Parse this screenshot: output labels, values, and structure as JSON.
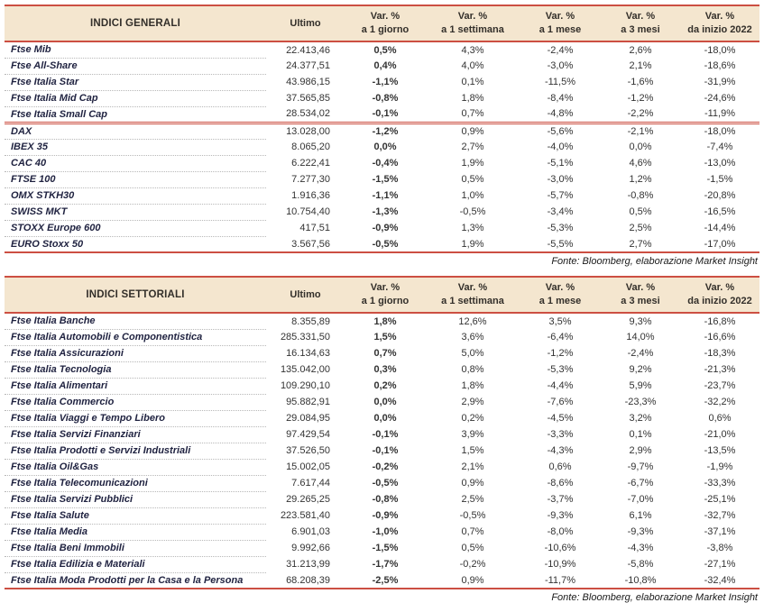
{
  "source_note": "Fonte: Bloomberg, elaborazione Market Insight",
  "header_cols": [
    {
      "line1": "Ultimo",
      "line2": ""
    },
    {
      "line1": "Var. %",
      "line2": "a 1 giorno"
    },
    {
      "line1": "Var. %",
      "line2": "a 1 settimana"
    },
    {
      "line1": "Var. %",
      "line2": "a 1 mese"
    },
    {
      "line1": "Var. %",
      "line2": "a 3 mesi"
    },
    {
      "line1": "Var. %",
      "line2": "da inizio 2022"
    }
  ],
  "tables": [
    {
      "title": "INDICI GENERALI",
      "groups": [
        {
          "rows": [
            [
              "Ftse Mib",
              "22.413,46",
              "0,5%",
              "4,3%",
              "-2,4%",
              "2,6%",
              "-18,0%"
            ],
            [
              "Ftse All-Share",
              "24.377,51",
              "0,4%",
              "4,0%",
              "-3,0%",
              "2,1%",
              "-18,6%"
            ],
            [
              "Ftse Italia Star",
              "43.986,15",
              "-1,1%",
              "0,1%",
              "-11,5%",
              "-1,6%",
              "-31,9%"
            ],
            [
              "Ftse Italia Mid Cap",
              "37.565,85",
              "-0,8%",
              "1,8%",
              "-8,4%",
              "-1,2%",
              "-24,6%"
            ],
            [
              "Ftse Italia Small Cap",
              "28.534,02",
              "-0,1%",
              "0,7%",
              "-4,8%",
              "-2,2%",
              "-11,9%"
            ]
          ]
        },
        {
          "rows": [
            [
              "DAX",
              "13.028,00",
              "-1,2%",
              "0,9%",
              "-5,6%",
              "-2,1%",
              "-18,0%"
            ],
            [
              "IBEX 35",
              "8.065,20",
              "0,0%",
              "2,7%",
              "-4,0%",
              "0,0%",
              "-7,4%"
            ],
            [
              "CAC 40",
              "6.222,41",
              "-0,4%",
              "1,9%",
              "-5,1%",
              "4,6%",
              "-13,0%"
            ],
            [
              "FTSE 100",
              "7.277,30",
              "-1,5%",
              "0,5%",
              "-3,0%",
              "1,2%",
              "-1,5%"
            ],
            [
              "OMX STKH30",
              "1.916,36",
              "-1,1%",
              "1,0%",
              "-5,7%",
              "-0,8%",
              "-20,8%"
            ],
            [
              "SWISS MKT",
              "10.754,40",
              "-1,3%",
              "-0,5%",
              "-3,4%",
              "0,5%",
              "-16,5%"
            ],
            [
              "STOXX Europe 600",
              "417,51",
              "-0,9%",
              "1,3%",
              "-5,3%",
              "2,5%",
              "-14,4%"
            ],
            [
              "EURO Stoxx 50",
              "3.567,56",
              "-0,5%",
              "1,9%",
              "-5,5%",
              "2,7%",
              "-17,0%"
            ]
          ]
        }
      ]
    },
    {
      "title": "INDICI SETTORIALI",
      "groups": [
        {
          "rows": [
            [
              "Ftse Italia Banche",
              "8.355,89",
              "1,8%",
              "12,6%",
              "3,5%",
              "9,3%",
              "-16,8%"
            ],
            [
              "Ftse Italia Automobili e Componentistica",
              "285.331,50",
              "1,5%",
              "3,6%",
              "-6,4%",
              "14,0%",
              "-16,6%"
            ],
            [
              "Ftse Italia Assicurazioni",
              "16.134,63",
              "0,7%",
              "5,0%",
              "-1,2%",
              "-2,4%",
              "-18,3%"
            ],
            [
              "Ftse Italia Tecnologia",
              "135.042,00",
              "0,3%",
              "0,8%",
              "-5,3%",
              "9,2%",
              "-21,3%"
            ],
            [
              "Ftse Italia Alimentari",
              "109.290,10",
              "0,2%",
              "1,8%",
              "-4,4%",
              "5,9%",
              "-23,7%"
            ],
            [
              "Ftse Italia Commercio",
              "95.882,91",
              "0,0%",
              "2,9%",
              "-7,6%",
              "-23,3%",
              "-32,2%"
            ],
            [
              "Ftse Italia Viaggi e Tempo Libero",
              "29.084,95",
              "0,0%",
              "0,2%",
              "-4,5%",
              "3,2%",
              "0,6%"
            ],
            [
              "Ftse Italia Servizi Finanziari",
              "97.429,54",
              "-0,1%",
              "3,9%",
              "-3,3%",
              "0,1%",
              "-21,0%"
            ],
            [
              "Ftse Italia Prodotti e Servizi Industriali",
              "37.526,50",
              "-0,1%",
              "1,5%",
              "-4,3%",
              "2,9%",
              "-13,5%"
            ],
            [
              "Ftse Italia Oil&Gas",
              "15.002,05",
              "-0,2%",
              "2,1%",
              "0,6%",
              "-9,7%",
              "-1,9%"
            ],
            [
              "Ftse Italia Telecomunicazioni",
              "7.617,44",
              "-0,5%",
              "0,9%",
              "-8,6%",
              "-6,7%",
              "-33,3%"
            ],
            [
              "Ftse Italia Servizi Pubblici",
              "29.265,25",
              "-0,8%",
              "2,5%",
              "-3,7%",
              "-7,0%",
              "-25,1%"
            ],
            [
              "Ftse Italia Salute",
              "223.581,40",
              "-0,9%",
              "-0,5%",
              "-9,3%",
              "6,1%",
              "-32,7%"
            ],
            [
              "Ftse Italia Media",
              "6.901,03",
              "-1,0%",
              "0,7%",
              "-8,0%",
              "-9,3%",
              "-37,1%"
            ],
            [
              "Ftse Italia Beni Immobili",
              "9.992,66",
              "-1,5%",
              "0,5%",
              "-10,6%",
              "-4,3%",
              "-3,8%"
            ],
            [
              "Ftse Italia Edilizia e Materiali",
              "31.213,99",
              "-1,7%",
              "-0,2%",
              "-10,9%",
              "-5,8%",
              "-27,1%"
            ],
            [
              "Ftse Italia Moda Prodotti per la Casa e la Persona",
              "68.208,39",
              "-2,5%",
              "0,9%",
              "-11,7%",
              "-10,8%",
              "-32,4%"
            ]
          ]
        }
      ]
    }
  ],
  "colors": {
    "accent_red": "#cc4f42",
    "header_beige": "#f4e6cf"
  }
}
